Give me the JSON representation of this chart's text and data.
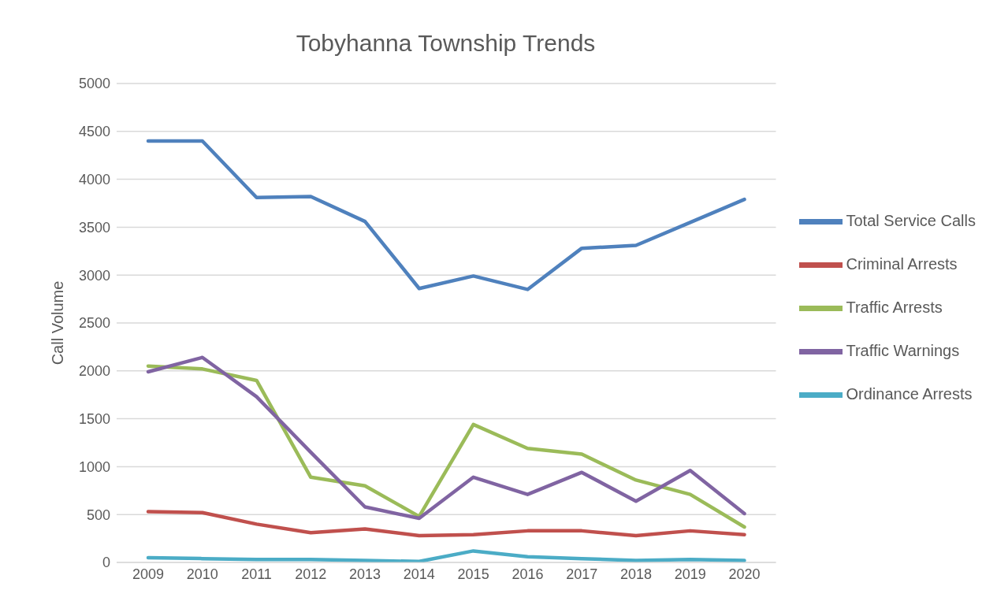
{
  "chart_data": {
    "type": "line",
    "title": "Tobyhanna Township Trends",
    "ylabel": "Call Volume",
    "categories": [
      "2009",
      "2010",
      "2011",
      "2012",
      "2013",
      "2014",
      "2015",
      "2016",
      "2017",
      "2018",
      "2019",
      "2020"
    ],
    "series": [
      {
        "name": "Total Service Calls",
        "color": "#4f81bd",
        "values": [
          4400,
          4400,
          3810,
          3820,
          3560,
          2860,
          2990,
          2850,
          3280,
          3310,
          3550,
          3790
        ]
      },
      {
        "name": "Criminal Arrests",
        "color": "#c0504d",
        "values": [
          530,
          520,
          400,
          310,
          350,
          280,
          290,
          330,
          330,
          280,
          330,
          290
        ]
      },
      {
        "name": "Traffic Arrests",
        "color": "#9bbb59",
        "values": [
          2050,
          2020,
          1900,
          890,
          800,
          480,
          1440,
          1190,
          1130,
          860,
          710,
          370
        ]
      },
      {
        "name": "Traffic Warnings",
        "color": "#8064a2",
        "values": [
          1990,
          2140,
          1730,
          1150,
          580,
          460,
          890,
          710,
          940,
          640,
          960,
          510
        ]
      },
      {
        "name": "Ordinance Arrests",
        "color": "#4bacc6",
        "values": [
          50,
          40,
          30,
          30,
          20,
          10,
          120,
          60,
          40,
          20,
          30,
          20
        ]
      }
    ],
    "ylim": [
      0,
      5000
    ],
    "yticks": [
      0,
      500,
      1000,
      1500,
      2000,
      2500,
      3000,
      3500,
      4000,
      4500,
      5000
    ],
    "grid": "y",
    "legend": "right",
    "marker": "none",
    "line_style": "solid"
  }
}
